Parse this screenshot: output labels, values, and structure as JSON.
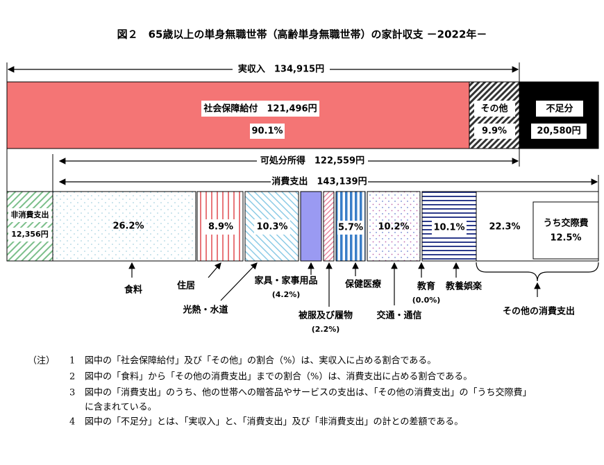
{
  "title": "図２　65歳以上の単身無職世帯（高齢単身無職世帯）の家計収支 －2022年－",
  "income": "実収入　134,915円",
  "top": {
    "social": "社会保障給付　121,496円",
    "social_pct": "90.1%",
    "other": "その他",
    "other_pct": "9.9%",
    "deficit": "不足分",
    "deficit_amount": "20,580円"
  },
  "disposable": "可処分所得　122,559円",
  "consumption": "消費支出　143,139円",
  "bar": {
    "non_consumption": "非消費支出",
    "non_consumption_amount": "12,356円",
    "food_pct": "26.2%",
    "housing_pct": "8.9%",
    "utilities_pct": "10.3%",
    "health_pct": "5.7%",
    "transport_pct": "10.2%",
    "culture_pct": "10.1%",
    "other_pct": "22.3%",
    "social_expense": "うち交際費",
    "social_expense_pct": "12.5%"
  },
  "labels": {
    "food": "食料",
    "housing": "住居",
    "utilities": "光熱・水道",
    "furniture": "家具・家事用品",
    "furniture_pct": "(4.2%)",
    "clothing": "被服及び履物",
    "clothing_pct": "(2.2%)",
    "health": "保健医療",
    "transport": "交通・通信",
    "education": "教育",
    "education_pct": "(0.0%)",
    "culture": "教養娯楽",
    "other": "その他の消費支出"
  },
  "notes": {
    "marker": "（注）",
    "items": [
      {
        "number": "1",
        "text": [
          "図中の「社会保障給付」及び「その他」の割合（%）は、実収入に占める割合である。"
        ]
      },
      {
        "number": "2",
        "text": [
          "図中の「食料」から「その他の消費支出」までの割合（%）は、消費支出に占める割合である。"
        ]
      },
      {
        "number": "3",
        "text": [
          "図中の「消費支出」のうち、他の世帯への贈答品やサービスの支出は、「その他の消費支出」の「うち交際費」",
          "に含まれている。"
        ]
      },
      {
        "number": "4",
        "text": [
          "図中の「不足分」とは、「実収入」と、「消費支出」及び「非消費支出」の計との差額である。"
        ]
      }
    ]
  }
}
